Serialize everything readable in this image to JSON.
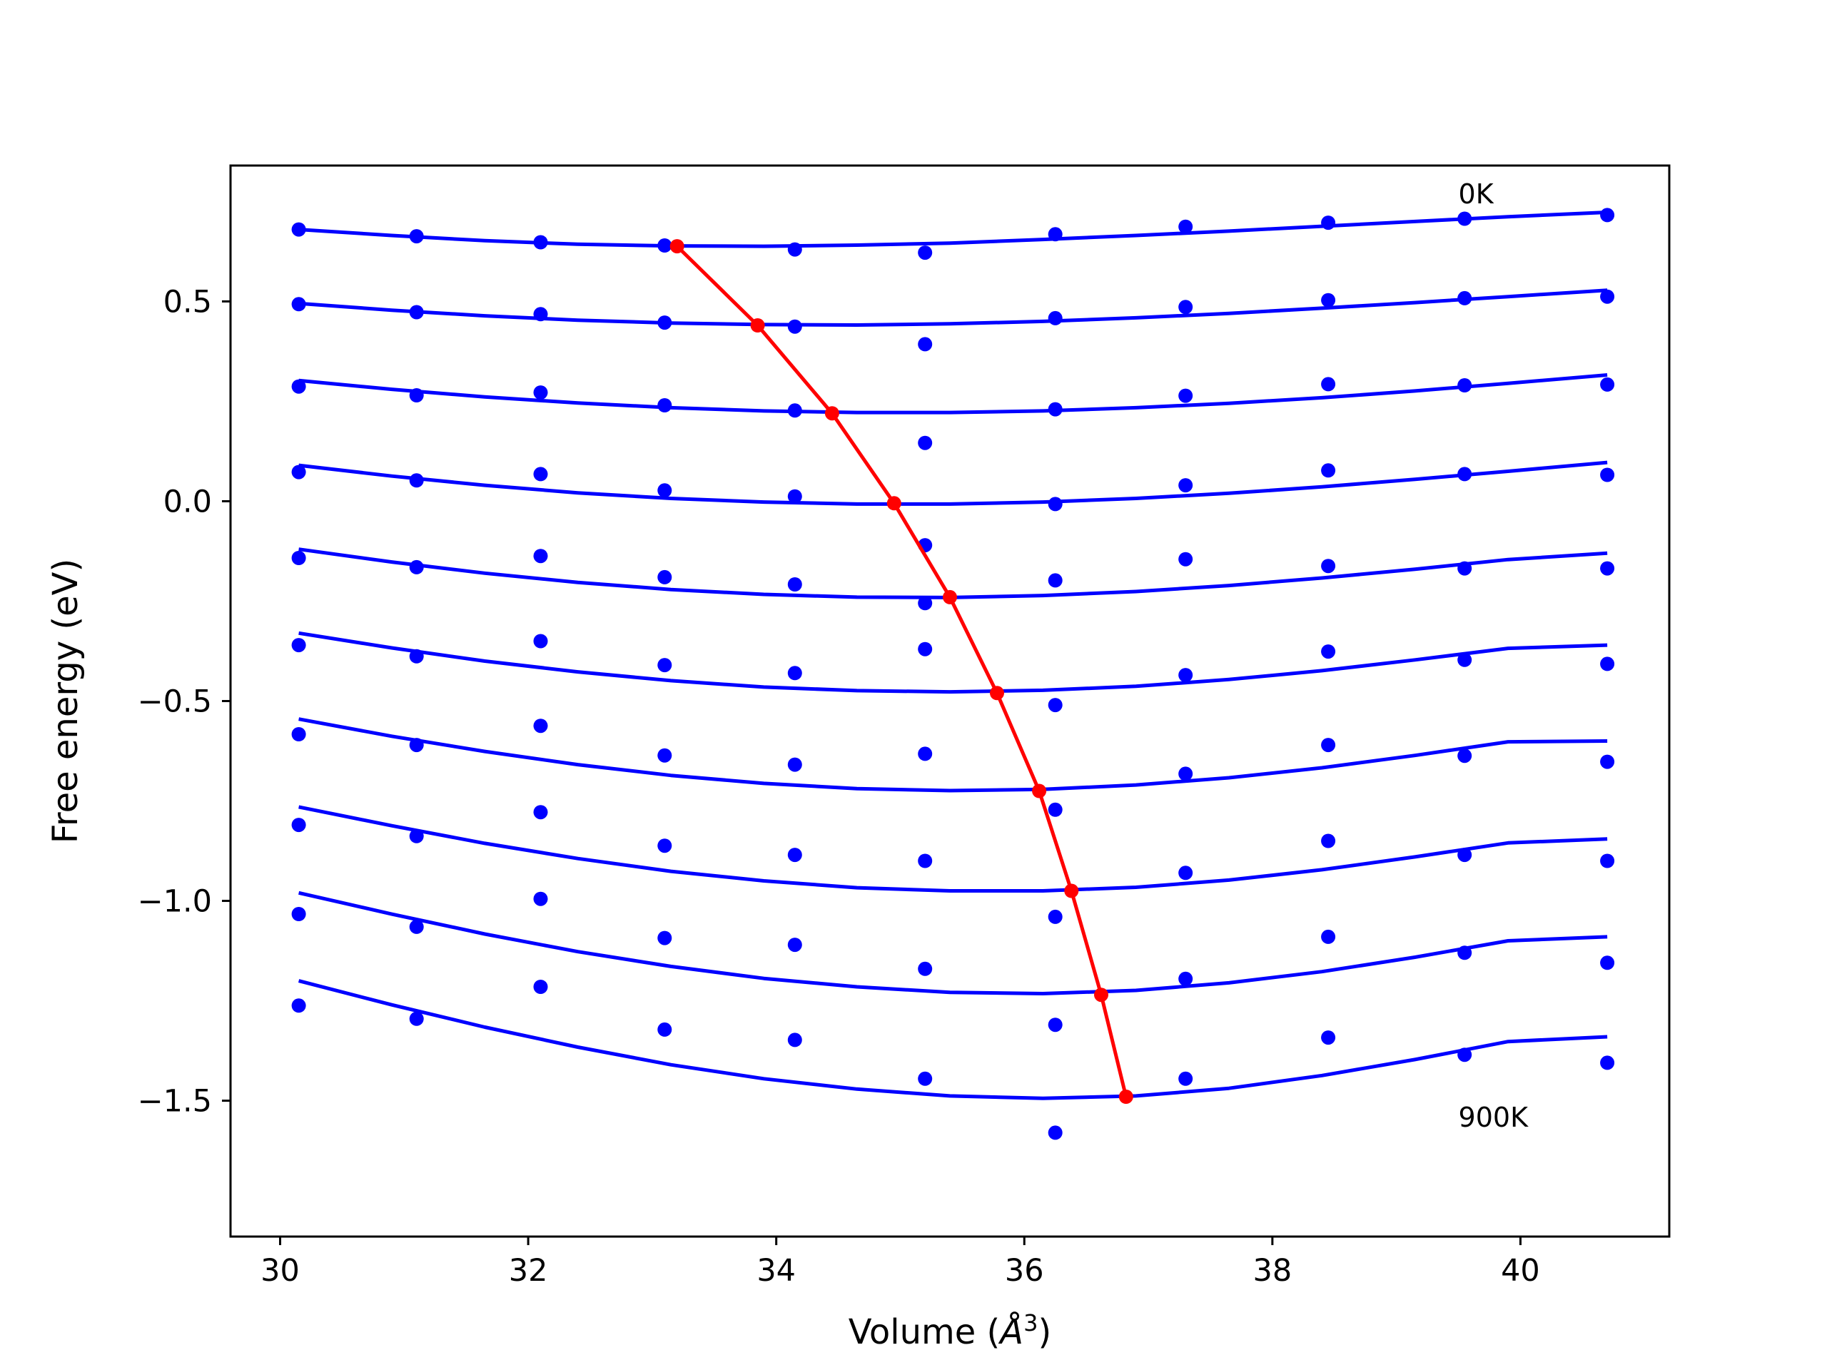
{
  "chart_data": {
    "type": "line",
    "xlabel_prefix": "Volume (",
    "xlabel_unit": "Å",
    "xlabel_exp": "3",
    "xlabel_suffix": ")",
    "ylabel": "Free energy (eV)",
    "xlim": [
      29.6,
      41.2
    ],
    "ylim": [
      -1.84,
      0.84
    ],
    "xticks": [
      30,
      32,
      34,
      36,
      38,
      40
    ],
    "xtick_labels": [
      "30",
      "32",
      "34",
      "36",
      "38",
      "40"
    ],
    "yticks": [
      0.5,
      0.0,
      -0.5,
      -1.0,
      -1.5
    ],
    "ytick_labels": [
      "0.5",
      "0.0",
      "−0.5",
      "−1.0",
      "−1.5"
    ],
    "grid": false,
    "legend": "none",
    "colors": {
      "data": "#0000ff",
      "minimum": "#ff0000",
      "axes": "#000000"
    },
    "annotations": [
      {
        "text": "0K",
        "x": 39.5,
        "y": 0.77
      },
      {
        "text": "900K",
        "x": 39.5,
        "y": -1.54
      }
    ],
    "fit_x": [
      30.15,
      30.9,
      31.65,
      32.4,
      33.15,
      33.9,
      34.65,
      35.4,
      36.15,
      36.9,
      37.65,
      38.4,
      39.15,
      39.9,
      40.7
    ],
    "series": [
      {
        "fit": [
          0.68,
          0.665,
          0.652,
          0.643,
          0.639,
          0.638,
          0.641,
          0.646,
          0.655,
          0.665,
          0.676,
          0.688,
          0.7,
          0.712,
          0.723
        ],
        "points": [
          0.68,
          0.663,
          0.648,
          0.64,
          0.63,
          0.622,
          0.668,
          0.687,
          0.697,
          0.707,
          0.716
        ]
      },
      {
        "fit": [
          0.495,
          0.478,
          0.464,
          0.453,
          0.446,
          0.442,
          0.441,
          0.444,
          0.45,
          0.459,
          0.47,
          0.483,
          0.497,
          0.512,
          0.528
        ],
        "points": [
          0.493,
          0.473,
          0.468,
          0.447,
          0.437,
          0.393,
          0.458,
          0.486,
          0.503,
          0.508,
          0.512
        ]
      },
      {
        "fit": [
          0.302,
          0.28,
          0.261,
          0.246,
          0.234,
          0.226,
          0.222,
          0.222,
          0.226,
          0.234,
          0.245,
          0.259,
          0.276,
          0.295,
          0.316
        ],
        "points": [
          0.287,
          0.265,
          0.272,
          0.24,
          0.227,
          0.146,
          0.23,
          0.264,
          0.293,
          0.29,
          0.292
        ]
      },
      {
        "fit": [
          0.09,
          0.063,
          0.04,
          0.021,
          0.007,
          -0.002,
          -0.007,
          -0.007,
          -0.002,
          0.007,
          0.02,
          0.036,
          0.055,
          0.075,
          0.097
        ],
        "points": [
          0.073,
          0.052,
          0.068,
          0.027,
          0.012,
          -0.11,
          -0.007,
          0.04,
          0.077,
          0.068,
          0.066
        ]
      },
      {
        "fit": [
          -0.12,
          -0.152,
          -0.18,
          -0.203,
          -0.221,
          -0.233,
          -0.24,
          -0.241,
          -0.236,
          -0.226,
          -0.211,
          -0.192,
          -0.17,
          -0.146,
          -0.13
        ],
        "points": [
          -0.142,
          -0.165,
          -0.137,
          -0.19,
          -0.208,
          -0.255,
          -0.198,
          -0.145,
          -0.162,
          -0.168,
          -0.168
        ]
      },
      {
        "fit": [
          -0.33,
          -0.367,
          -0.4,
          -0.427,
          -0.449,
          -0.465,
          -0.474,
          -0.477,
          -0.473,
          -0.463,
          -0.446,
          -0.424,
          -0.397,
          -0.368,
          -0.36
        ],
        "points": [
          -0.36,
          -0.388,
          -0.35,
          -0.41,
          -0.43,
          -0.37,
          -0.51,
          -0.435,
          -0.376,
          -0.397,
          -0.407
        ]
      },
      {
        "fit": [
          -0.545,
          -0.588,
          -0.626,
          -0.659,
          -0.686,
          -0.706,
          -0.719,
          -0.724,
          -0.721,
          -0.71,
          -0.692,
          -0.667,
          -0.636,
          -0.602,
          -0.6
        ],
        "points": [
          -0.583,
          -0.61,
          -0.562,
          -0.636,
          -0.659,
          -0.632,
          -0.772,
          -0.682,
          -0.61,
          -0.637,
          -0.652
        ]
      },
      {
        "fit": [
          -0.765,
          -0.812,
          -0.856,
          -0.894,
          -0.926,
          -0.95,
          -0.967,
          -0.975,
          -0.975,
          -0.966,
          -0.948,
          -0.922,
          -0.89,
          -0.855,
          -0.845
        ],
        "points": [
          -0.81,
          -0.838,
          -0.778,
          -0.862,
          -0.885,
          -0.9,
          -1.04,
          -0.93,
          -0.85,
          -0.885,
          -0.9
        ]
      },
      {
        "fit": [
          -0.98,
          -1.033,
          -1.083,
          -1.127,
          -1.164,
          -1.194,
          -1.215,
          -1.229,
          -1.232,
          -1.224,
          -1.205,
          -1.177,
          -1.141,
          -1.1,
          -1.09
        ],
        "points": [
          -1.033,
          -1.065,
          -0.995,
          -1.093,
          -1.11,
          -1.17,
          -1.31,
          -1.195,
          -1.09,
          -1.13,
          -1.155
        ]
      },
      {
        "fit": [
          -1.2,
          -1.26,
          -1.316,
          -1.366,
          -1.41,
          -1.445,
          -1.471,
          -1.488,
          -1.494,
          -1.488,
          -1.469,
          -1.437,
          -1.397,
          -1.352,
          -1.34
        ],
        "points": [
          -1.262,
          -1.295,
          -1.215,
          -1.322,
          -1.348,
          -1.445,
          -1.58,
          -1.445,
          -1.342,
          -1.385,
          -1.405
        ]
      }
    ],
    "points_x": [
      30.15,
      31.1,
      32.1,
      33.1,
      34.15,
      35.2,
      36.25,
      37.3,
      38.45,
      39.55,
      40.7
    ],
    "minimum_line": {
      "x": [
        33.2,
        33.85,
        34.45,
        34.95,
        35.4,
        35.78,
        36.12,
        36.38,
        36.62,
        36.82
      ],
      "y": [
        0.638,
        0.44,
        0.22,
        -0.005,
        -0.24,
        -0.48,
        -0.725,
        -0.975,
        -1.235,
        -1.49
      ]
    }
  }
}
